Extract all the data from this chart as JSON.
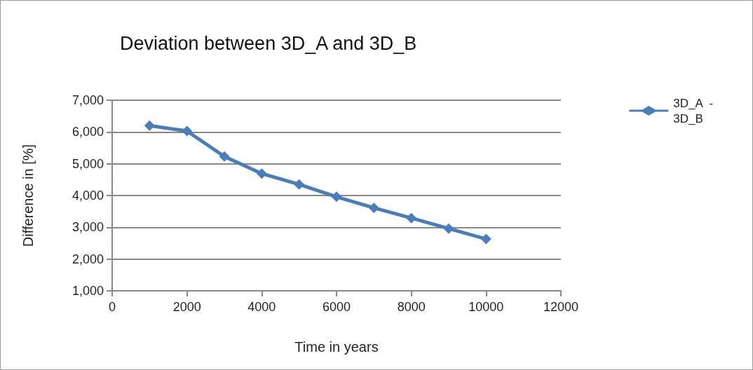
{
  "chart_data": {
    "type": "line",
    "title": "Deviation between 3D_A and 3D_B",
    "xlabel": "Time in years",
    "ylabel": "Difference in [%]",
    "x": [
      1000,
      2000,
      3000,
      4000,
      5000,
      6000,
      7000,
      8000,
      9000,
      10000
    ],
    "series": [
      {
        "name": "3D_A  -\n3D_B",
        "color": "#4a7ebb",
        "values": [
          6200,
          6030,
          5230,
          4690,
          4350,
          3960,
          3610,
          3290,
          2960,
          2630
        ]
      }
    ],
    "xlim": [
      0,
      12000
    ],
    "xticks": [
      0,
      2000,
      4000,
      6000,
      8000,
      10000,
      12000
    ],
    "ylim": [
      1000,
      7000
    ],
    "yticks": [
      {
        "value": 1000,
        "label": "1,000"
      },
      {
        "value": 2000,
        "label": "2,000"
      },
      {
        "value": 3000,
        "label": "3,000"
      },
      {
        "value": 4000,
        "label": "4,000"
      },
      {
        "value": 5000,
        "label": "5,000"
      },
      {
        "value": 6000,
        "label": "6,000"
      },
      {
        "value": 7000,
        "label": "7,000"
      }
    ],
    "grid": "y",
    "legend": "right",
    "marker": "diamond",
    "line_style": "solid"
  }
}
